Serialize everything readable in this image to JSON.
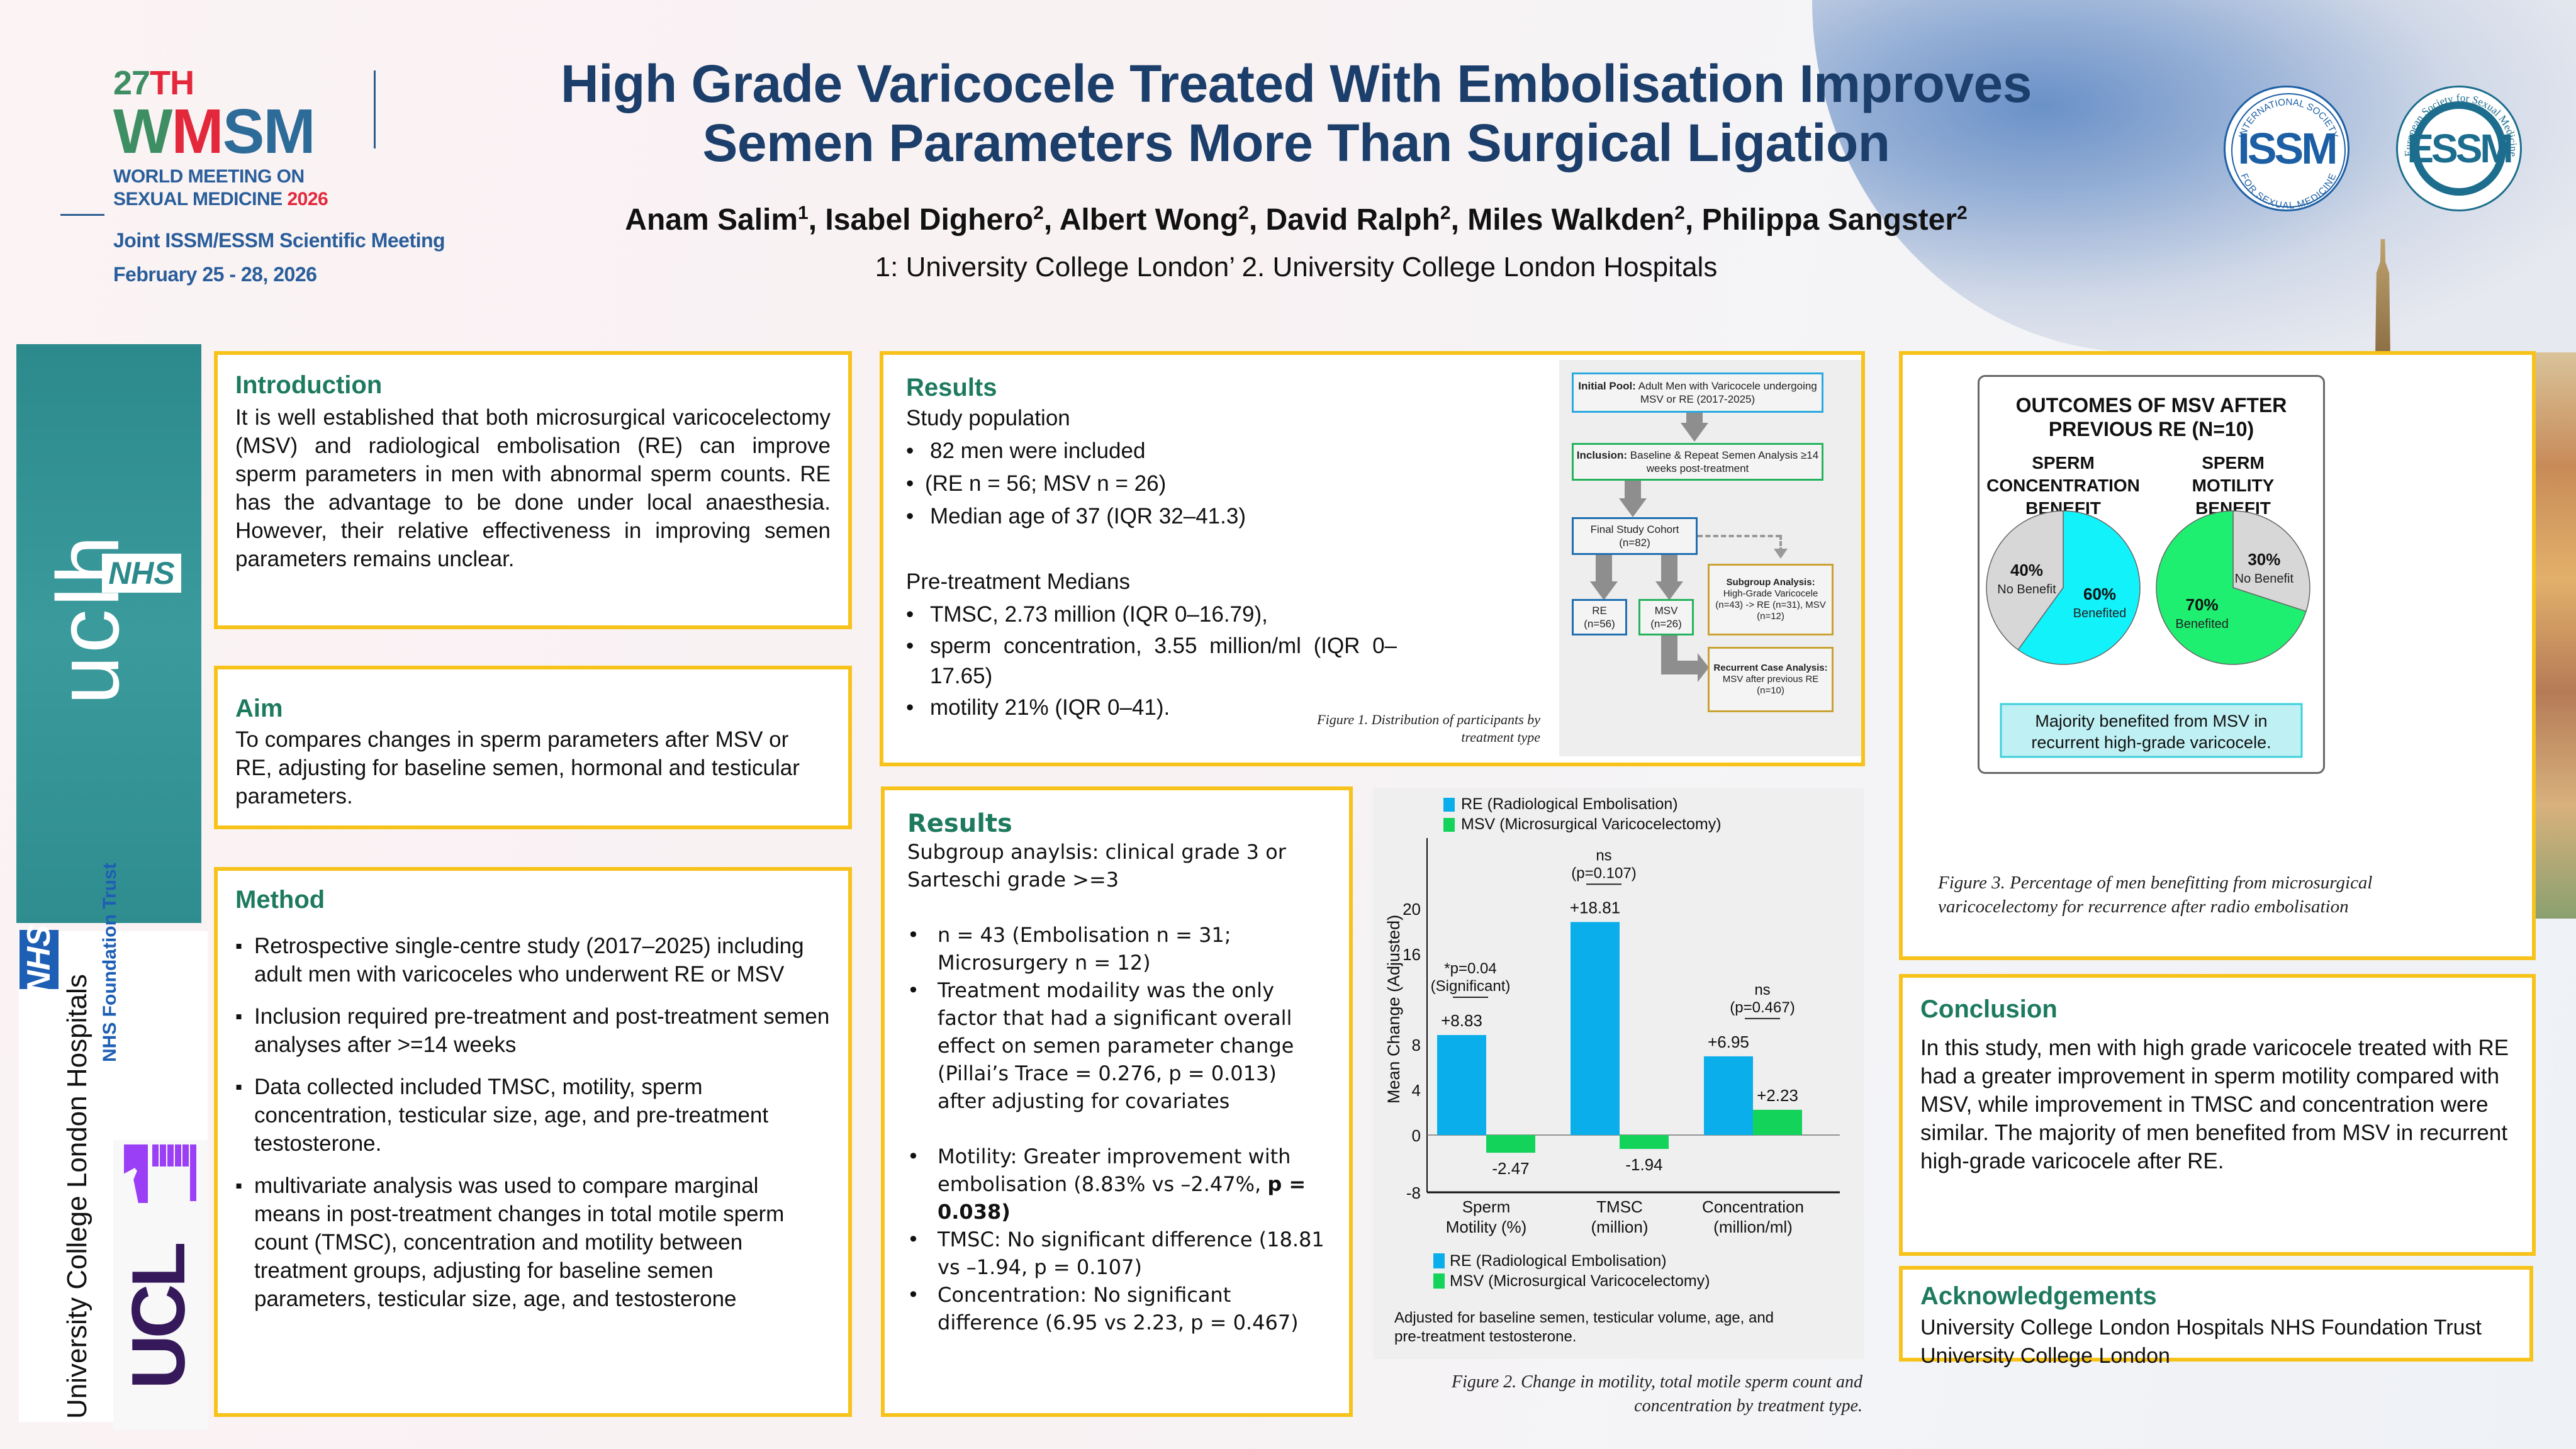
{
  "header": {
    "conference": {
      "ordinal_num": "27",
      "ordinal_suffix": "TH",
      "acronym_w": "W",
      "acronym_m": "M",
      "acronym_sm": "SM",
      "line1": "WORLD MEETING ON",
      "line2": "SEXUAL MEDICINE",
      "year": "2026",
      "joint": "Joint ISSM/ESSM Scientific Meeting",
      "dates": "February 25 - 28, 2026"
    },
    "title_line1": "High Grade Varicocele Treated With Embolisation Improves",
    "title_line2": "Semen Parameters More Than Surgical Ligation",
    "authors": [
      {
        "name": "Anam Salim",
        "aff": "1"
      },
      {
        "name": "Isabel Dighero",
        "aff": "2"
      },
      {
        "name": "Albert Wong",
        "aff": "2"
      },
      {
        "name": "David  Ralph",
        "aff": "2"
      },
      {
        "name": "Miles Walkden",
        "aff": "2"
      },
      {
        "name": "Philippa Sangster",
        "aff": "2"
      }
    ],
    "affiliations": "1: University College London’ 2. University College London Hospitals",
    "logos": {
      "issm_core": "ISSM",
      "issm_ring_top": "INTERNATIONAL SOCIETY",
      "issm_ring_bottom": "FOR SEXUAL MEDICINE",
      "essm_core": "ESSM",
      "essm_ring": "European Society for Sexual Medicine"
    }
  },
  "side_logos": {
    "uclh": "uclh",
    "nhs": "NHS",
    "uclh_full": "University College London Hospitals",
    "nhs_ft": "NHS Foundation Trust",
    "ucl": "UCL"
  },
  "introduction": {
    "heading": "Introduction",
    "text": "It is well established that both microsurgical varicocelectomy (MSV) and radiological embolisation (RE) can improve sperm parameters in men with abnormal sperm counts. RE has the advantage to be done under local anaesthesia. However, their relative effectiveness in improving semen parameters remains unclear."
  },
  "aim": {
    "heading": "Aim",
    "text": "To compares changes in sperm parameters after MSV or RE, adjusting for baseline semen, hormonal and testicular parameters."
  },
  "method": {
    "heading": "Method",
    "items": [
      "Retrospective single-centre study (2017–2025) including adult men with varicoceles who underwent RE or MSV",
      "Inclusion required pre-treatment and post-treatment semen analyses after >=14 weeks",
      "Data collected included TMSC, motility, sperm concentration, testicular size, age, and pre-treatment testosterone.",
      "multivariate analysis was used to compare marginal means in post-treatment changes in total motile sperm count (TMSC), concentration and motility between treatment groups, adjusting for baseline semen parameters, testicular size, age, and testosterone"
    ]
  },
  "results1": {
    "heading": "Results",
    "study_population": "Study population",
    "sp_items": [
      "82 men were included",
      "(RE n = 56; MSV n = 26)",
      "Median age of 37 (IQR 32–41.3)"
    ],
    "pre_treatment": "Pre-treatment Medians",
    "pt_items": [
      "TMSC, 2.73 million (IQR 0–16.79),",
      "sperm  concentration,  3.55  million/ml  (IQR 0–17.65)",
      "motility 21% (IQR 0–41)."
    ],
    "figure1_caption": "Figure 1. Distribution of participants by treatment type",
    "flowchart": {
      "initial_bold": "Initial Pool:",
      "initial_text": " Adult Men with Varicocele undergoing MSV or RE (2017-2025)",
      "inclusion_bold": "Inclusion:",
      "inclusion_text": " Baseline & Repeat Semen Analysis ≥14 weeks post-treatment",
      "cohort": "Final Study Cohort",
      "cohort_n": "(n=82)",
      "re": "RE",
      "re_n": "(n=56)",
      "msv": "MSV",
      "msv_n": "(n=26)",
      "subgroup_bold": "Subgroup Analysis:",
      "subgroup_text": "High-Grade Varicocele (n=43) -> RE (n=31), MSV (n=12)",
      "recurrent_bold": "Recurrent Case Analysis:",
      "recurrent_text": " MSV after previous RE (n=10)"
    }
  },
  "results2": {
    "heading": "Results",
    "intro": "Subgroup anaylsis: clinical grade 3 or Sarteschi grade >=3",
    "items_a": [
      "n = 43 (Embolisation n = 31; Microsurgery n = 12)",
      "Treatment modaility was the only factor that had a significant overall effect on semen parameter change (Pillai’s Trace = 0.276, p = 0.013) after adjusting for covariates"
    ],
    "motility_prefix": "Motility: Greater improvement with embolisation (8.83% vs –2.47%, ",
    "motility_bold": "p = 0.038)",
    "items_b": [
      "TMSC: No significant difference (18.81 vs –1.94, p = 0.107)",
      "Concentration: No significant difference (6.95 vs 2.23, p = 0.467)"
    ]
  },
  "chart_data": [
    {
      "type": "bar",
      "title": "",
      "ylabel": "Mean Change (Adjusted)",
      "xlabel": "",
      "categories": [
        "Sperm Motility (%)",
        "TMSC (million)",
        "Concentration (million/ml)"
      ],
      "category_lines": [
        [
          "Sperm",
          "Motility (%)"
        ],
        [
          "TMSC",
          "(million)"
        ],
        [
          "Concentration",
          "(million/ml)"
        ]
      ],
      "series": [
        {
          "name": "RE (Radiological Embolisation)",
          "color": "#0aaeea",
          "values": [
            8.83,
            18.81,
            6.95
          ],
          "labels": [
            "+8.83",
            "+18.81",
            "+6.95"
          ]
        },
        {
          "name": "MSV (Microsurgical Varicocelectomy)",
          "color": "#13d35a",
          "values": [
            -2.47,
            -1.94,
            2.23
          ],
          "labels": [
            "-2.47",
            "-1.94",
            "+2.23"
          ]
        }
      ],
      "yticks": [
        "20",
        "16",
        "8",
        "4",
        "0",
        "-8"
      ],
      "ylim": [
        -8,
        22
      ],
      "annotations": [
        {
          "line1": "*p=0.04",
          "line2": "(Significant)"
        },
        {
          "line1": "ns",
          "line2": "(p=0.107)"
        },
        {
          "line1": "ns",
          "line2": "(p=0.467)"
        }
      ],
      "legend_placement": "top and bottom",
      "note": "Adjusted for baseline semen, testicular volume, age, and pre-treatment testosterone.",
      "caption": "Figure 2. Change in  motility, total motile sperm count and concentration by treatment type."
    },
    {
      "type": "pie",
      "title": "OUTCOMES OF MSV AFTER PREVIOUS RE (N=10)",
      "charts": [
        {
          "title_lines": [
            "SPERM",
            "CONCENTRATION",
            "BENEFIT"
          ],
          "slices": [
            {
              "label": "Benefited",
              "value": 60,
              "pct": "60%",
              "color": "#12f2fb"
            },
            {
              "label": "No Benefit",
              "value": 40,
              "pct": "40%",
              "color": "#d7d7d7"
            }
          ]
        },
        {
          "title_lines": [
            "SPERM",
            "MOTILITY",
            "BENEFIT"
          ],
          "slices": [
            {
              "label": "Benefited",
              "value": 70,
              "pct": "70%",
              "color": "#1fef71"
            },
            {
              "label": "No Benefit",
              "value": 30,
              "pct": "30%",
              "color": "#d7d7d7"
            }
          ]
        }
      ],
      "summary": "Majority benefited from MSV in recurrent high-grade varicocele.",
      "caption": "Figure 3. Percentage of men benefitting from microsurgical varicocelectomy for recurrence after radio embolisation"
    }
  ],
  "conclusion": {
    "heading": "Conclusion",
    "text": "In this study, men with high grade varicocele treated with RE had a greater improvement in sperm motility compared with MSV, while improvement in TMSC and concentration were similar. The majority of men benefited from MSV in recurrent high-grade varicocele after RE."
  },
  "acknowledgements": {
    "heading": "Acknowledgements",
    "lines": [
      "University College London Hospitals NHS Foundation Trust",
      "University College London"
    ]
  },
  "colors": {
    "panel_border": "#f7c21a",
    "heading": "#1e7a5f",
    "title": "#1b3e6b"
  }
}
